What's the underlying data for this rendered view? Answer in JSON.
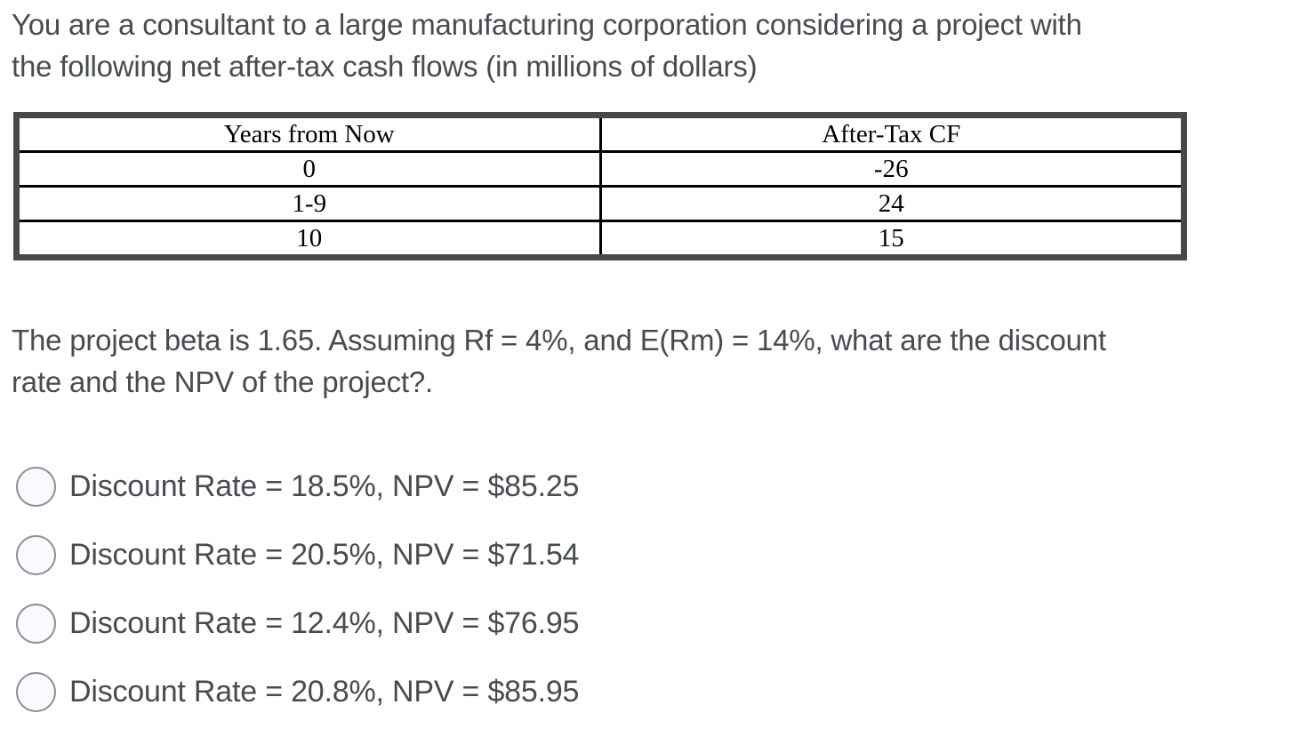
{
  "intro": {
    "lines": [
      "You are a consultant to a large manufacturing corporation considering a project with",
      "the following net after-tax cash flows (in millions of dollars)"
    ]
  },
  "table": {
    "headers": [
      "Years from Now",
      "After-Tax CF"
    ],
    "rows": [
      [
        "0",
        "-26"
      ],
      [
        "1-9",
        "24"
      ],
      [
        "10",
        "15"
      ]
    ]
  },
  "prompt": {
    "lines": [
      "The project beta is 1.65. Assuming Rf = 4%, and E(Rm) = 14%, what are the discount",
      "rate and the NPV of the project?."
    ]
  },
  "options": [
    {
      "label": "Discount Rate = 18.5%, NPV = $85.25"
    },
    {
      "label": "Discount Rate = 20.5%, NPV = $71.54"
    },
    {
      "label": "Discount Rate = 12.4%, NPV = $76.95"
    },
    {
      "label": "Discount Rate = 20.8%, NPV = $85.95"
    }
  ],
  "colors": {
    "body_text": "#474c50",
    "table_outer_border": "#46494d",
    "table_inner_border": "#000000",
    "table_text": "#000000",
    "radio_border": "#8b9298",
    "radio_fill": "#f8fafd",
    "background": "#ffffff"
  }
}
